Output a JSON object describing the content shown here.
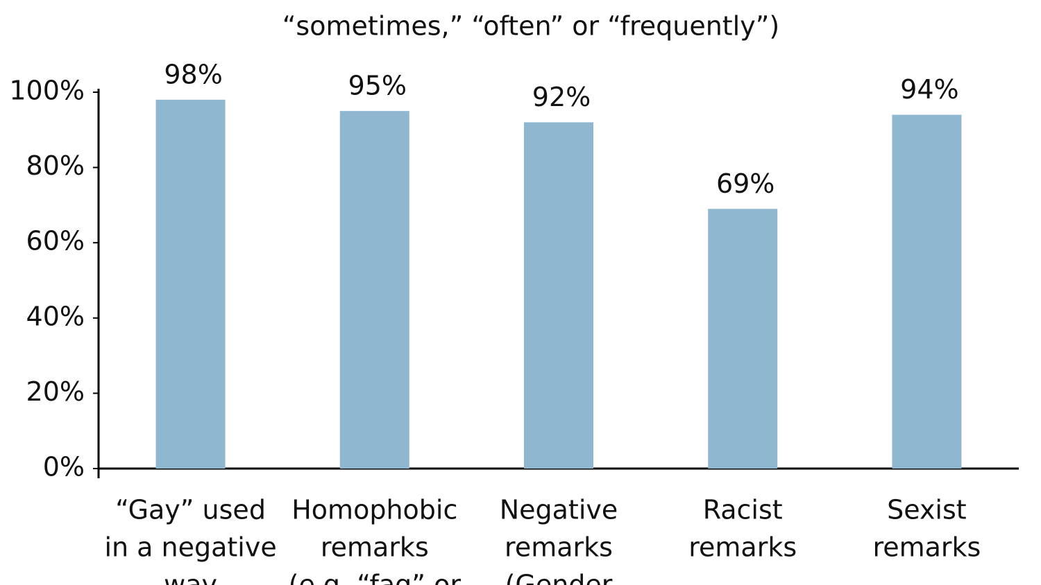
{
  "chart_data": {
    "type": "bar",
    "subtitle": "“sometimes,” “often” or “frequently”)",
    "categories": [
      [
        "“Gay” used",
        "in a negative",
        "way"
      ],
      [
        "Homophobic",
        "remarks",
        "(e.g. “fag” or"
      ],
      [
        "Negative",
        "remarks",
        "(Gender"
      ],
      [
        "Racist",
        "remarks"
      ],
      [
        "Sexist",
        "remarks"
      ]
    ],
    "values": [
      98,
      95,
      92,
      69,
      94
    ],
    "value_labels": [
      "98%",
      "95%",
      "92%",
      "69%",
      "94%"
    ],
    "color": "#8fb8d0",
    "ylim": [
      0,
      100
    ],
    "yticks": [
      {
        "value": 0,
        "label": "0%"
      },
      {
        "value": 20,
        "label": "20%"
      },
      {
        "value": 40,
        "label": "40%"
      },
      {
        "value": 60,
        "label": "60%"
      },
      {
        "value": 80,
        "label": "80%"
      },
      {
        "value": 100,
        "label": "100%"
      }
    ],
    "grid": false
  }
}
